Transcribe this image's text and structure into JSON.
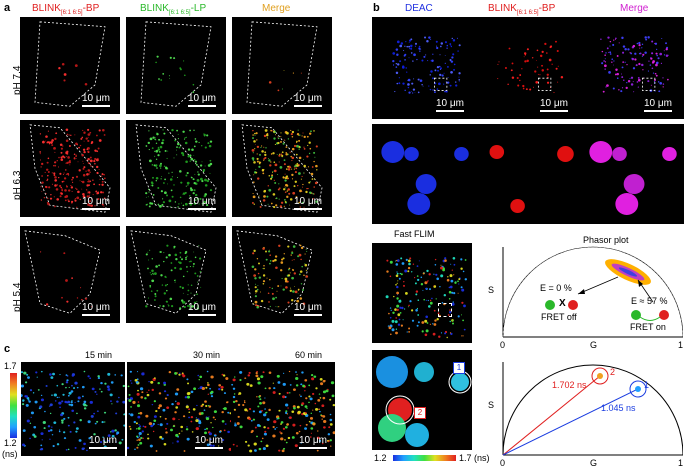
{
  "panel_a": {
    "letter": "a",
    "columns": [
      {
        "prefix": "BLINK",
        "sub": "[6:1 6:5]",
        "suffix": "-BP",
        "color": "#e02020"
      },
      {
        "prefix": "BLINK",
        "sub": "[6:1 6:5]",
        "suffix": "-LP",
        "color": "#2ab82a"
      },
      {
        "prefix": "Merge",
        "sub": "",
        "suffix": "",
        "color": "#e0a020"
      }
    ],
    "rows": [
      "pH 7.4",
      "pH 6.3",
      "pH 5.4"
    ],
    "scale_label": "10 μm"
  },
  "panel_b": {
    "letter": "b",
    "columns": [
      {
        "prefix": "DEAC",
        "sub": "",
        "suffix": "",
        "color": "#2030e0"
      },
      {
        "prefix": "BLINK",
        "sub": "[6:1 6:5]",
        "suffix": "-BP",
        "color": "#e02020"
      },
      {
        "prefix": "Merge",
        "sub": "",
        "suffix": "",
        "color": "#d020d0"
      }
    ],
    "scale_label": "10 μm",
    "fast_flim_label": "Fast FLIM",
    "phasor_title": "Phasor plot",
    "axis_s": "S",
    "axis_g": "G",
    "tick_0": "0",
    "tick_1": "1",
    "fret_off_e": "E = 0 %",
    "fret_off_label": "FRET off",
    "fret_on_e": "E ≈ 57 %",
    "fret_on_label": "FRET on",
    "x_mark": "X",
    "roi_1": "1",
    "roi_2": "2",
    "lifetime_1": "1.045 ns",
    "lifetime_2": "1.702 ns",
    "colorbar_min": "1.2",
    "colorbar_max": "1.7 (ns)"
  },
  "panel_c": {
    "letter": "c",
    "times": [
      "15 min",
      "30 min",
      "60 min"
    ],
    "colorbar_max": "1.7",
    "colorbar_min": "1.2",
    "colorbar_unit": "(ns)",
    "scale_label": "10 μm"
  },
  "colors": {
    "blink_red": "#e02020",
    "lp_green": "#2ab82a",
    "merge_orange": "#e0a020",
    "deac_blue": "#2030e0",
    "merge_magenta": "#d020d0",
    "roi1_blue": "#1a3ce0",
    "roi2_red": "#e02020"
  }
}
